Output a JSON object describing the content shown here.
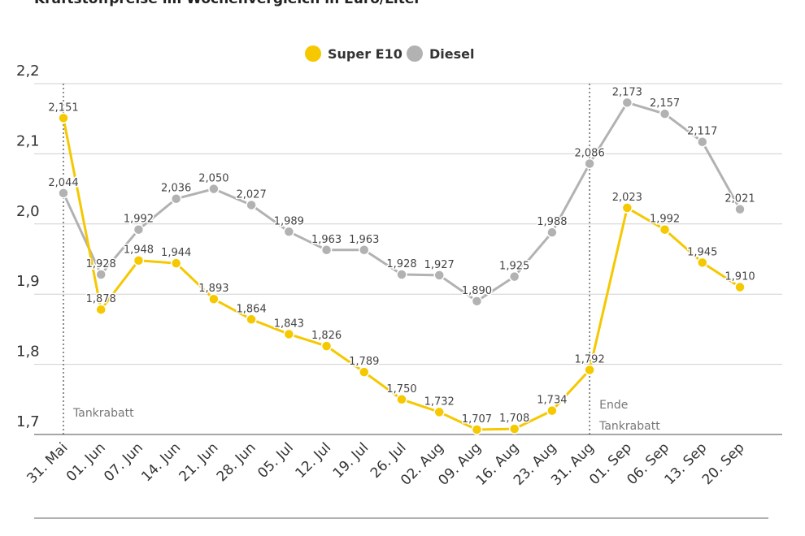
{
  "chart_data": {
    "type": "line",
    "title": "Kraftstoffpreise im Wochenvergleich in Euro/Liter",
    "categories": [
      "31. Mai",
      "01. Jun",
      "07. Jun",
      "14. Jun",
      "21. Jun",
      "28. Jun",
      "05. Jul",
      "12. Jul",
      "19. Jul",
      "26. Jul",
      "02. Aug",
      "09. Aug",
      "16. Aug",
      "23. Aug",
      "31. Aug",
      "01. Sep",
      "06. Sep",
      "13. Sep",
      "20. Sep"
    ],
    "series": [
      {
        "name": "Super E10",
        "color": "#f5c800",
        "values": [
          2.151,
          1.878,
          1.948,
          1.944,
          1.893,
          1.864,
          1.843,
          1.826,
          1.789,
          1.75,
          1.732,
          1.707,
          1.708,
          1.734,
          1.792,
          2.023,
          1.992,
          1.945,
          1.91
        ],
        "value_labels": [
          "2,151",
          "1,878",
          "1,948",
          "1,944",
          "1,893",
          "1,864",
          "1,843",
          "1,826",
          "1,789",
          "1,750",
          "1,732",
          "1,707",
          "1,708",
          "1,734",
          "1,792",
          "2,023",
          "1,992",
          "1,945",
          "1,910"
        ]
      },
      {
        "name": "Diesel",
        "color": "#b2b2b2",
        "values": [
          2.044,
          1.928,
          1.992,
          2.036,
          2.05,
          2.027,
          1.989,
          1.963,
          1.963,
          1.928,
          1.927,
          1.89,
          1.925,
          1.988,
          2.086,
          2.173,
          2.157,
          2.117,
          2.021
        ],
        "value_labels": [
          "2,044",
          "1,928",
          "1,992",
          "2,036",
          "2,050",
          "2,027",
          "1,989",
          "1,963",
          "1,963",
          "1,928",
          "1,927",
          "1,890",
          "1,925",
          "1,988",
          "2,086",
          "2,173",
          "2,157",
          "2,117",
          "2,021"
        ]
      }
    ],
    "ylim": [
      1.7,
      2.2
    ],
    "yticks": [
      {
        "value": 1.7,
        "label": "1,7"
      },
      {
        "value": 1.8,
        "label": "1,8"
      },
      {
        "value": 1.9,
        "label": "1,9"
      },
      {
        "value": 2.0,
        "label": "2,0"
      },
      {
        "value": 2.1,
        "label": "2,1"
      },
      {
        "value": 2.2,
        "label": "2,2"
      }
    ],
    "grid": true,
    "legend": "top",
    "annotations": [
      {
        "x": "31. Mai",
        "lines": [
          "Tankrabatt"
        ]
      },
      {
        "x": "31. Aug",
        "lines": [
          "Ende",
          "Tankrabatt"
        ]
      }
    ]
  }
}
